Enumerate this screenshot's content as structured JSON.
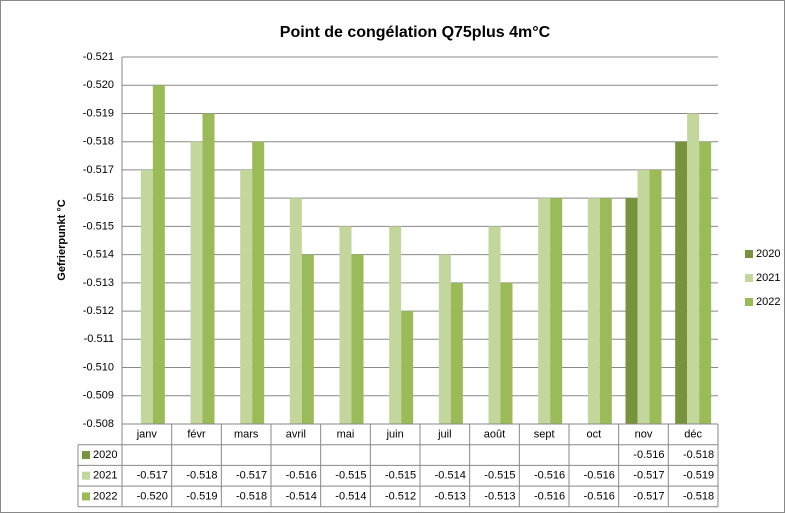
{
  "chart_data": {
    "type": "bar",
    "title": "Point de congélation Q75plus 4m°C",
    "y_label": "Gefrierpunkt °C",
    "categories": [
      "janv",
      "févr",
      "mars",
      "avril",
      "mai",
      "juin",
      "juil",
      "août",
      "sept",
      "oct",
      "nov",
      "déc"
    ],
    "series": [
      {
        "name": "2020",
        "color": "#77933c",
        "values": [
          null,
          null,
          null,
          null,
          null,
          null,
          null,
          null,
          null,
          null,
          -0.516,
          -0.518
        ],
        "value_labels": [
          null,
          null,
          null,
          null,
          null,
          null,
          null,
          null,
          null,
          null,
          "-0.516",
          "-0.518"
        ]
      },
      {
        "name": "2021",
        "color": "#c3d69b",
        "values": [
          -0.517,
          -0.518,
          -0.517,
          -0.516,
          -0.515,
          -0.515,
          -0.514,
          -0.515,
          -0.516,
          -0.516,
          -0.517,
          -0.519
        ],
        "value_labels": [
          "-0.517",
          "-0.518",
          "-0.517",
          "-0.516",
          "-0.515",
          "-0.515",
          "-0.514",
          "-0.515",
          "-0.516",
          "-0.516",
          "-0.517",
          "-0.519"
        ]
      },
      {
        "name": "2022",
        "color": "#9bbb59",
        "values": [
          -0.52,
          -0.519,
          -0.518,
          -0.514,
          -0.514,
          -0.512,
          -0.513,
          -0.513,
          -0.516,
          -0.516,
          -0.517,
          -0.518
        ],
        "value_labels": [
          "-0.520",
          "-0.519",
          "-0.518",
          "-0.514",
          "-0.514",
          "-0.512",
          "-0.513",
          "-0.513",
          "-0.516",
          "-0.516",
          "-0.517",
          "-0.518"
        ]
      }
    ],
    "ylim": [
      -0.508,
      -0.521
    ],
    "yticks": [
      -0.508,
      -0.509,
      {
        "value": -0.51,
        "label": "-0.510"
      },
      -0.511,
      -0.512,
      -0.513,
      -0.514,
      -0.515,
      -0.516,
      -0.517,
      -0.518,
      -0.519,
      {
        "value": -0.52,
        "label": "-0.520"
      },
      -0.521
    ],
    "grid": true,
    "legend": "right"
  }
}
